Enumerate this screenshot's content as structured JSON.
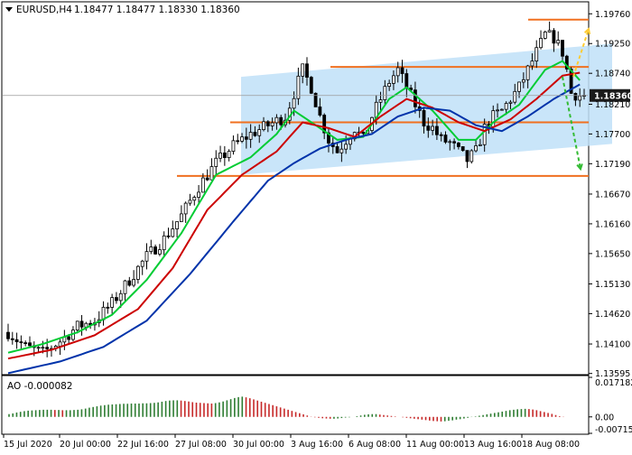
{
  "header": {
    "symbol": "EURUSD,H4",
    "ohlc": "1.18477 1.18477 1.18330 1.18360"
  },
  "ao_panel": {
    "label": "AO -0.000082",
    "ticks": [
      "0.017182",
      "0.00",
      "-0.007155"
    ]
  },
  "colors": {
    "bull_bar": "#2e7d32",
    "bear_bar": "#c62828",
    "ma_fast": "#00cc33",
    "ma_mid": "#cc0000",
    "ma_slow": "#0033aa",
    "channel_fill": "#bfe0f8",
    "levels": "#f07020",
    "arrow_up": "#ffcc33",
    "arrow_down": "#33bb33",
    "price_box": "#1a1a1a"
  },
  "chart_data": [
    {
      "type": "candlestick",
      "title": "",
      "series_label": "EURUSD,H4",
      "ylim": [
        1.1359,
        1.1995
      ],
      "y_ticks": [
        1.1976,
        1.1925,
        1.1874,
        1.1821,
        1.177,
        1.1719,
        1.1667,
        1.1616,
        1.1565,
        1.1513,
        1.1462,
        1.141,
        1.13595
      ],
      "y_tick_labels": [
        "1.19760",
        "1.19250",
        "1.18740",
        "1.18210",
        "1.17700",
        "1.17190",
        "1.16670",
        "1.16160",
        "1.15650",
        "1.15130",
        "1.14620",
        "1.14100",
        "1.13595"
      ],
      "current_price": 1.1836,
      "current_price_label": "1.18360",
      "x_tick_labels": [
        "15 Jul 2020",
        "20 Jul 00:00",
        "22 Jul 16:00",
        "27 Jul 08:00",
        "30 Jul 00:00",
        "3 Aug 16:00",
        "6 Aug 08:00",
        "11 Aug 00:00",
        "13 Aug 16:00",
        "18 Aug 08:00"
      ],
      "price_path": [
        [
          0,
          1.143
        ],
        [
          4,
          1.1405
        ],
        [
          8,
          1.1395
        ],
        [
          12,
          1.1415
        ],
        [
          16,
          1.144
        ],
        [
          20,
          1.145
        ],
        [
          24,
          1.148
        ],
        [
          28,
          1.152
        ],
        [
          32,
          1.156
        ],
        [
          36,
          1.159
        ],
        [
          40,
          1.163
        ],
        [
          44,
          1.168
        ],
        [
          48,
          1.172
        ],
        [
          52,
          1.175
        ],
        [
          56,
          1.177
        ],
        [
          60,
          1.1785
        ],
        [
          64,
          1.18
        ],
        [
          66,
          1.184
        ],
        [
          68,
          1.188
        ],
        [
          70,
          1.185
        ],
        [
          72,
          1.18
        ],
        [
          74,
          1.176
        ],
        [
          76,
          1.174
        ],
        [
          78,
          1.176
        ],
        [
          80,
          1.178
        ],
        [
          82,
          1.176
        ],
        [
          84,
          1.18
        ],
        [
          86,
          1.183
        ],
        [
          88,
          1.186
        ],
        [
          90,
          1.188
        ],
        [
          92,
          1.185
        ],
        [
          94,
          1.182
        ],
        [
          96,
          1.179
        ],
        [
          98,
          1.178
        ],
        [
          100,
          1.176
        ],
        [
          102,
          1.1755
        ],
        [
          104,
          1.174
        ],
        [
          106,
          1.1725
        ],
        [
          108,
          1.174
        ],
        [
          110,
          1.178
        ],
        [
          112,
          1.18
        ],
        [
          114,
          1.181
        ],
        [
          116,
          1.183
        ],
        [
          118,
          1.185
        ],
        [
          120,
          1.188
        ],
        [
          122,
          1.191
        ],
        [
          124,
          1.194
        ],
        [
          126,
          1.1935
        ],
        [
          128,
          1.191
        ],
        [
          129,
          1.188
        ],
        [
          130,
          1.184
        ],
        [
          132,
          1.1836
        ]
      ],
      "moving_averages": [
        {
          "name": "ma_fast",
          "color": "#00cc33",
          "values": [
            [
              0,
              1.1395
            ],
            [
              8,
              1.141
            ],
            [
              16,
              1.143
            ],
            [
              24,
              1.146
            ],
            [
              32,
              1.152
            ],
            [
              40,
              1.16
            ],
            [
              48,
              1.17
            ],
            [
              56,
              1.173
            ],
            [
              62,
              1.177
            ],
            [
              66,
              1.181
            ],
            [
              70,
              1.179
            ],
            [
              76,
              1.176
            ],
            [
              82,
              1.1765
            ],
            [
              88,
              1.183
            ],
            [
              92,
              1.185
            ],
            [
              98,
              1.181
            ],
            [
              104,
              1.176
            ],
            [
              108,
              1.176
            ],
            [
              112,
              1.179
            ],
            [
              118,
              1.182
            ],
            [
              124,
              1.188
            ],
            [
              128,
              1.1895
            ],
            [
              132,
              1.1862
            ]
          ]
        },
        {
          "name": "ma_mid",
          "color": "#cc0000",
          "values": [
            [
              0,
              1.1385
            ],
            [
              10,
              1.14
            ],
            [
              20,
              1.1425
            ],
            [
              30,
              1.147
            ],
            [
              38,
              1.154
            ],
            [
              46,
              1.164
            ],
            [
              54,
              1.17
            ],
            [
              62,
              1.174
            ],
            [
              68,
              1.179
            ],
            [
              74,
              1.178
            ],
            [
              80,
              1.1765
            ],
            [
              86,
              1.18
            ],
            [
              92,
              1.183
            ],
            [
              98,
              1.1815
            ],
            [
              104,
              1.179
            ],
            [
              110,
              1.1775
            ],
            [
              116,
              1.1795
            ],
            [
              122,
              1.183
            ],
            [
              128,
              1.187
            ],
            [
              132,
              1.1875
            ]
          ]
        },
        {
          "name": "ma_slow",
          "color": "#0033aa",
          "values": [
            [
              0,
              1.136
            ],
            [
              12,
              1.138
            ],
            [
              22,
              1.1405
            ],
            [
              32,
              1.145
            ],
            [
              42,
              1.153
            ],
            [
              52,
              1.162
            ],
            [
              60,
              1.169
            ],
            [
              66,
              1.172
            ],
            [
              72,
              1.1745
            ],
            [
              78,
              1.176
            ],
            [
              84,
              1.177
            ],
            [
              90,
              1.18
            ],
            [
              96,
              1.1815
            ],
            [
              102,
              1.181
            ],
            [
              108,
              1.1785
            ],
            [
              114,
              1.1775
            ],
            [
              120,
              1.18
            ],
            [
              126,
              1.183
            ],
            [
              132,
              1.1855
            ]
          ]
        }
      ],
      "horizontal_levels": [
        1.1966,
        1.1885,
        1.179,
        1.1698
      ],
      "channel": {
        "lower_left": [
          1.17,
          1.1753
        ],
        "upper_left": [
          1.1868,
          1.1925
        ]
      },
      "forecast_arrows": [
        {
          "direction": "up",
          "from": 1.1868,
          "to": 1.195
        },
        {
          "direction": "down",
          "from": 1.1868,
          "to": 1.171
        }
      ]
    },
    {
      "type": "bar",
      "title": "AO -0.000082",
      "ylim": [
        -0.007155,
        0.017182
      ],
      "y_ticks": [
        0.017182,
        0.0,
        -0.007155
      ],
      "values": [
        0.0012,
        0.0015,
        0.0019,
        0.0022,
        0.0025,
        0.0027,
        0.0028,
        0.0029,
        0.003,
        0.0031,
        0.0031,
        0.0031,
        0.003,
        0.003,
        0.0029,
        0.0029,
        0.0029,
        0.003,
        0.0031,
        0.0033,
        0.0036,
        0.004,
        0.0043,
        0.0046,
        0.0049,
        0.0051,
        0.0053,
        0.0054,
        0.0055,
        0.0056,
        0.0057,
        0.0057,
        0.0058,
        0.0058,
        0.0058,
        0.0059,
        0.0059,
        0.006,
        0.0061,
        0.0063,
        0.0066,
        0.0069,
        0.0071,
        0.0072,
        0.0072,
        0.0071,
        0.0069,
        0.0067,
        0.0064,
        0.0062,
        0.0061,
        0.006,
        0.0059,
        0.0058,
        0.006,
        0.0063,
        0.0067,
        0.0072,
        0.0077,
        0.0082,
        0.0086,
        0.0088,
        0.0085,
        0.0081,
        0.0076,
        0.0071,
        0.0066,
        0.0061,
        0.0056,
        0.0051,
        0.0046,
        0.0041,
        0.0036,
        0.0031,
        0.0026,
        0.0021,
        0.0016,
        0.0011,
        0.0006,
        0.0001,
        -0.0002,
        -0.0004,
        -0.0006,
        -0.0007,
        -0.0008,
        -0.0008,
        -0.0007,
        -0.0005,
        -0.0003,
        -0.0002,
        0.0,
        0.0003,
        0.0006,
        0.0009,
        0.0011,
        0.0012,
        0.0012,
        0.001,
        0.0008,
        0.0006,
        0.0004,
        0.0002,
        0.0,
        -0.0002,
        -0.0004,
        -0.0006,
        -0.0008,
        -0.001,
        -0.0012,
        -0.0014,
        -0.0016,
        -0.0018,
        -0.0019,
        -0.002,
        -0.0019,
        -0.0017,
        -0.0015,
        -0.0012,
        -0.001,
        -0.0007,
        -0.0004,
        -0.0001,
        0.0002,
        0.0005,
        0.0008,
        0.0011,
        0.0014,
        0.0017,
        0.002,
        0.0023,
        0.0026,
        0.0029,
        0.0031,
        0.0033,
        0.0034,
        0.0035,
        0.0034,
        0.0032,
        0.0029,
        0.0025,
        0.0021,
        0.0017,
        0.0013,
        0.0008,
        0.0003,
        -0.0001
      ]
    }
  ]
}
